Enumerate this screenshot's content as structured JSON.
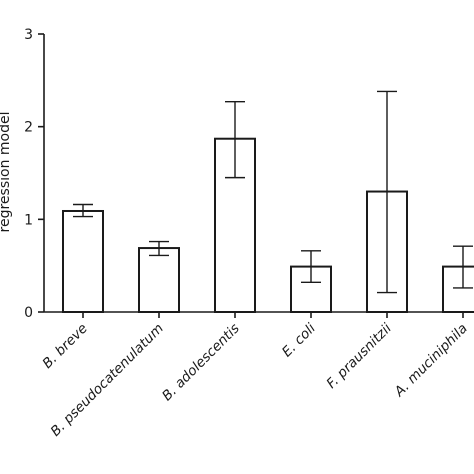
{
  "chart_data": {
    "type": "bar",
    "title": "",
    "xlabel": "",
    "ylabel": "regression model",
    "ylim": [
      0,
      3
    ],
    "yticks": [
      0,
      1,
      2,
      3
    ],
    "grid": false,
    "categories": [
      "B. breve",
      "B. pseudocatenulatum",
      "B. adolescentis",
      "E. coli",
      "F. prausnitzii",
      "A. muciniphila"
    ],
    "values": [
      1.09,
      0.69,
      1.87,
      0.49,
      1.3,
      0.49
    ],
    "error_low": [
      1.03,
      0.61,
      1.45,
      0.32,
      0.21,
      0.26
    ],
    "error_high": [
      1.16,
      0.76,
      2.27,
      0.66,
      2.38,
      0.71
    ],
    "colors": {
      "bar_fill": "#ffffff",
      "stroke": "#1a1a1a"
    }
  }
}
